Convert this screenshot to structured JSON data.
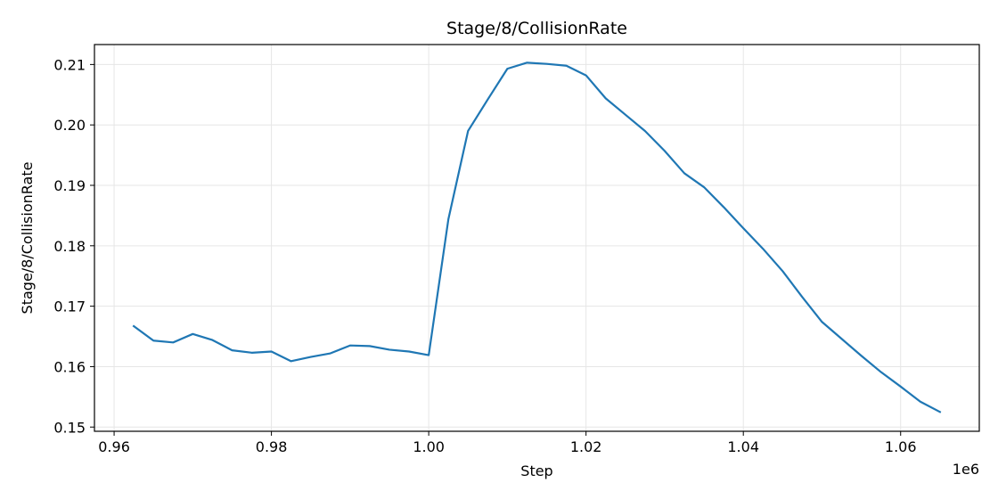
{
  "chart_data": {
    "type": "line",
    "title": "Stage/8/CollisionRate",
    "xlabel": "Step",
    "ylabel": "Stage/8/CollisionRate",
    "x_offset_label": "1e6",
    "xlim": [
      0.9575,
      1.07
    ],
    "ylim": [
      0.1493,
      0.2133
    ],
    "x_ticks": [
      0.96,
      0.98,
      1.0,
      1.02,
      1.04,
      1.06
    ],
    "x_tick_labels": [
      "0.96",
      "0.98",
      "1.00",
      "1.02",
      "1.04",
      "1.06"
    ],
    "y_ticks": [
      0.15,
      0.16,
      0.17,
      0.18,
      0.19,
      0.2,
      0.21
    ],
    "y_tick_labels": [
      "0.15",
      "0.16",
      "0.17",
      "0.18",
      "0.19",
      "0.20",
      "0.21"
    ],
    "grid": true,
    "colors": {
      "line": "#1f77b4",
      "grid": "#e6e6e6",
      "axis": "#000000"
    },
    "series": [
      {
        "x": [
          0.9625,
          0.965,
          0.9675,
          0.97,
          0.9725,
          0.975,
          0.9775,
          0.98,
          0.9825,
          0.985,
          0.9875,
          0.99,
          0.9925,
          0.995,
          0.9975,
          1.0,
          1.0025,
          1.005,
          1.0075,
          1.01,
          1.0125,
          1.015,
          1.0175,
          1.02,
          1.0225,
          1.025,
          1.0275,
          1.03,
          1.0325,
          1.035,
          1.0375,
          1.04,
          1.0425,
          1.045,
          1.0475,
          1.05,
          1.0525,
          1.055,
          1.0575,
          1.06,
          1.0625,
          1.065
        ],
        "y": [
          0.1667,
          0.1643,
          0.164,
          0.1654,
          0.1644,
          0.1627,
          0.1623,
          0.1625,
          0.1609,
          0.1616,
          0.1622,
          0.1635,
          0.1634,
          0.1628,
          0.1625,
          0.1619,
          0.1844,
          0.199,
          0.2042,
          0.2093,
          0.2103,
          0.2101,
          0.2098,
          0.2082,
          0.2044,
          0.2017,
          0.199,
          0.1957,
          0.192,
          0.1897,
          0.1864,
          0.1829,
          0.1795,
          0.1758,
          0.1715,
          0.1674,
          0.1646,
          0.1618,
          0.1591,
          0.1567,
          0.1542,
          0.1525
        ]
      }
    ]
  }
}
